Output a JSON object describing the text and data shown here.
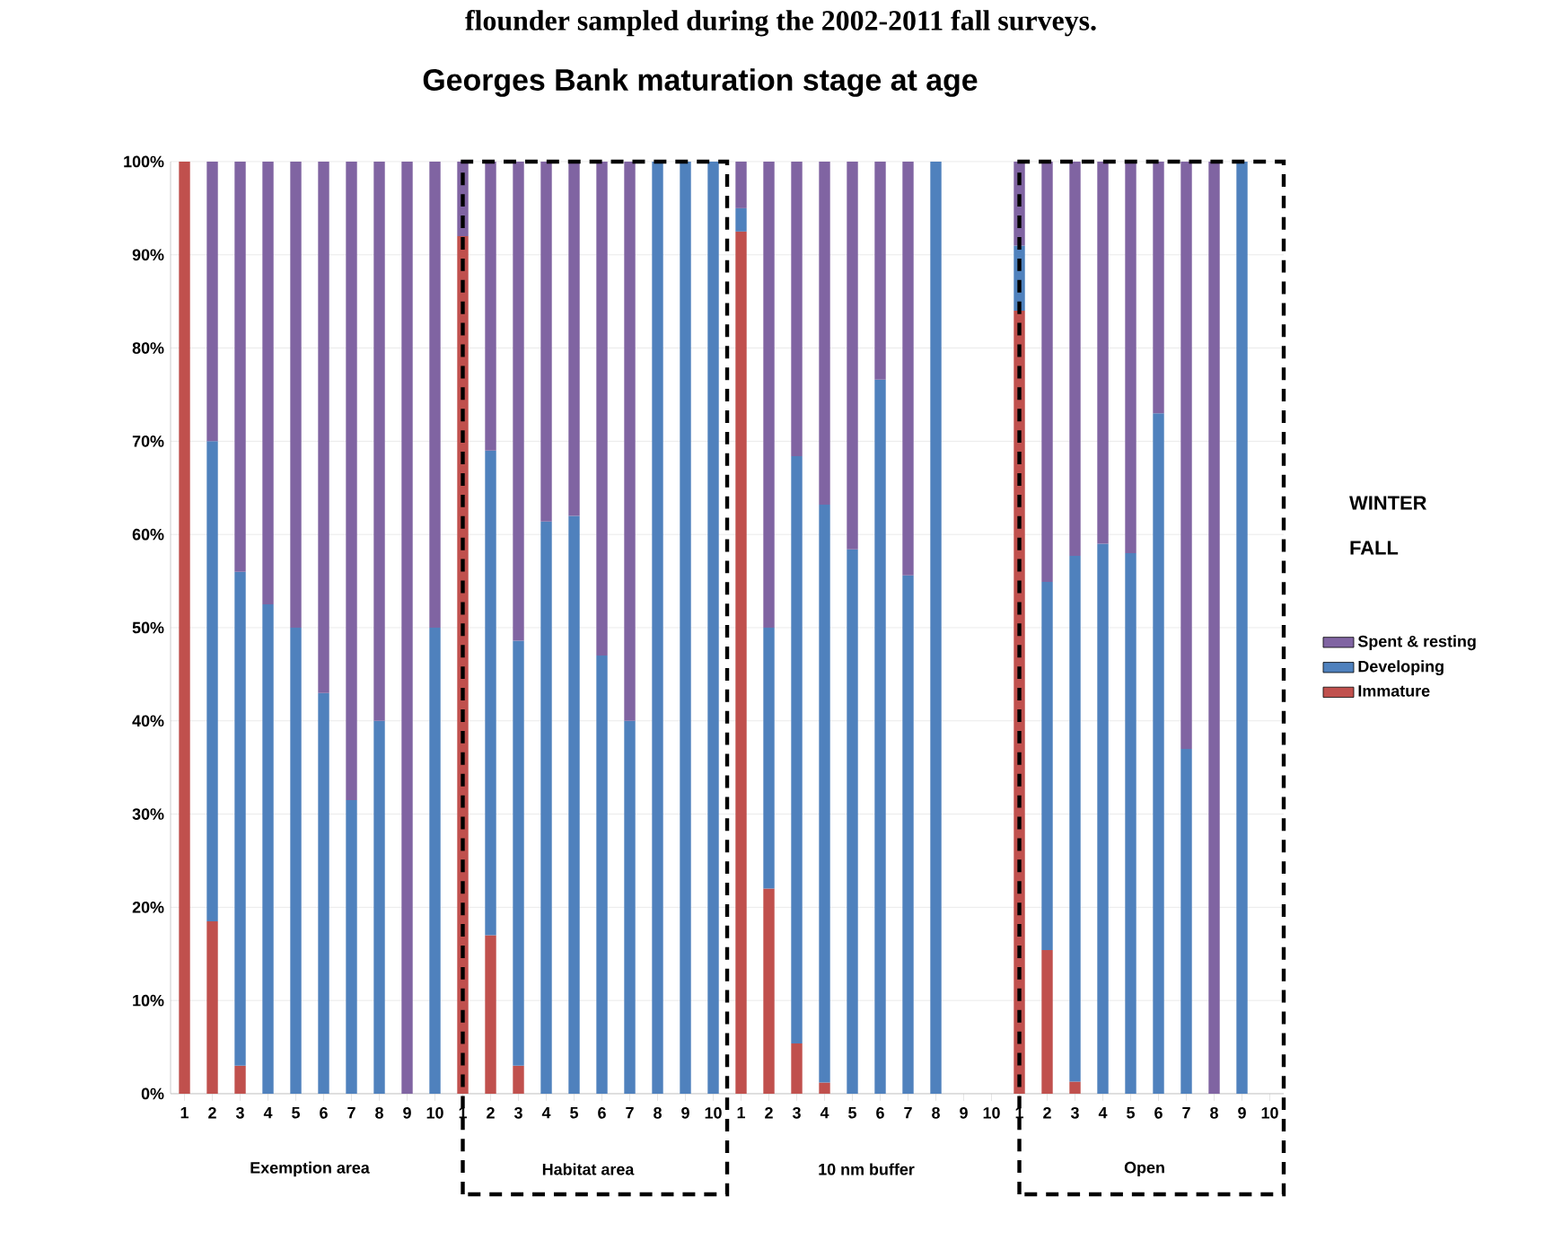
{
  "chart_data": {
    "type": "bar",
    "stacked": true,
    "title": "Georges Bank maturation stage at age",
    "annotations": [
      "flounder sampled during the 2002-2011 fall surveys.",
      "Exemption area",
      "Habitat area",
      "10 nm buffer",
      "Open",
      "WINTER",
      "FALL"
    ],
    "categories": [
      "1",
      "2",
      "3",
      "4",
      "5",
      "6",
      "7",
      "8",
      "9",
      "10",
      "1",
      "2",
      "3",
      "4",
      "5",
      "6",
      "7",
      "8",
      "9",
      "10",
      "1",
      "2",
      "3",
      "4",
      "5",
      "6",
      "7",
      "8",
      "9",
      "10",
      "1",
      "2",
      "3",
      "4",
      "5",
      "6",
      "7",
      "8",
      "9",
      "10"
    ],
    "series": [
      {
        "name": "Immature",
        "color": "#c0504d",
        "values": [
          100,
          18.5,
          3,
          null,
          null,
          null,
          null,
          null,
          null,
          null,
          92,
          17,
          3,
          null,
          null,
          null,
          null,
          null,
          null,
          null,
          92.5,
          22,
          5.4,
          1.2,
          null,
          null,
          null,
          null,
          null,
          null,
          84,
          15.4,
          1.3,
          null,
          null,
          null,
          null,
          null,
          null,
          null
        ]
      },
      {
        "name": "Developing",
        "color": "#4f81bd",
        "values": [
          null,
          51.5,
          53,
          52.5,
          50,
          43,
          31.5,
          40,
          null,
          50,
          null,
          52,
          45.6,
          61.4,
          62,
          47,
          40,
          100,
          100,
          100,
          2.5,
          28,
          63,
          62,
          58.4,
          76.6,
          55.6,
          100,
          null,
          null,
          7,
          39.5,
          56.4,
          59,
          58,
          73,
          37,
          null,
          100,
          null
        ]
      },
      {
        "name": "Spent & resting",
        "color": "#8064a2",
        "values": [
          null,
          30,
          44,
          47.5,
          50,
          57,
          68.5,
          60,
          100,
          50,
          8,
          31,
          51.4,
          38.6,
          38,
          53,
          60,
          null,
          null,
          null,
          5,
          50,
          31.6,
          36.8,
          41.6,
          23.4,
          44.4,
          null,
          null,
          null,
          9,
          45.1,
          42.3,
          41,
          42,
          27,
          63,
          100,
          null,
          null
        ]
      }
    ],
    "ylim": [
      0,
      100
    ],
    "yticks": [
      {
        "value": 0,
        "label": "0%"
      },
      {
        "value": 10,
        "label": "10%"
      },
      {
        "value": 20,
        "label": "20%"
      },
      {
        "value": 30,
        "label": "30%"
      },
      {
        "value": 40,
        "label": "40%"
      },
      {
        "value": 50,
        "label": "50%"
      },
      {
        "value": 60,
        "label": "60%"
      },
      {
        "value": 70,
        "label": "70%"
      },
      {
        "value": 80,
        "label": "80%"
      },
      {
        "value": 90,
        "label": "90%"
      },
      {
        "value": 100,
        "label": "100%"
      }
    ],
    "grid": "y",
    "legend": "right"
  }
}
